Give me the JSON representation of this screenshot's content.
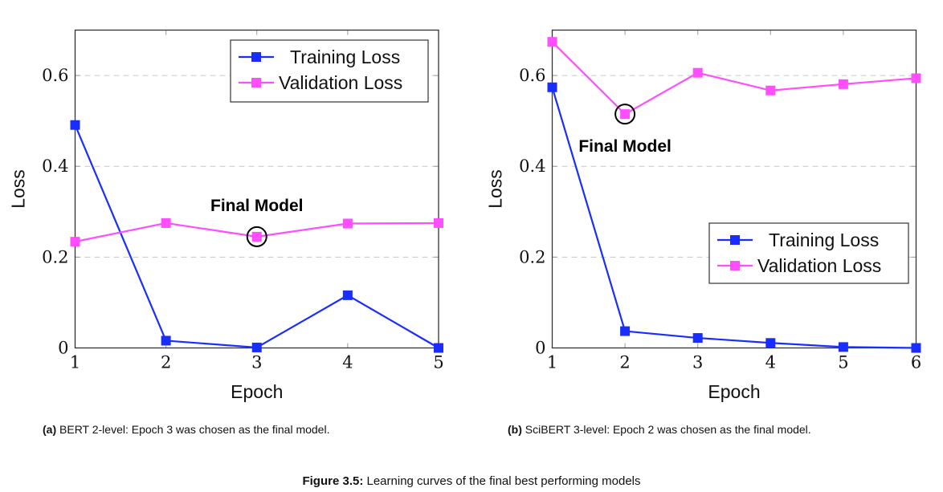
{
  "chart_data": [
    {
      "id": "a",
      "type": "line",
      "title": "",
      "xlabel": "Epoch",
      "ylabel": "Loss",
      "x": [
        1,
        2,
        3,
        4,
        5
      ],
      "xlim": [
        1,
        5
      ],
      "ylim": [
        0,
        0.7
      ],
      "xticks": [
        "1",
        "2",
        "3",
        "4",
        "5"
      ],
      "yticks": [
        0,
        0.2,
        0.4,
        0.6
      ],
      "ytick_labels": [
        "0",
        "0.2",
        "0.4",
        "0.6"
      ],
      "grid": "horizontal-dashed",
      "legend_position": "top-right",
      "series": [
        {
          "name": "Training Loss",
          "color": "#1a2dff",
          "marker": "square",
          "values": [
            0.491,
            0.016,
            0.001,
            0.116,
            0.0
          ]
        },
        {
          "name": "Validation Loss",
          "color": "#ff4dff",
          "marker": "square",
          "values": [
            0.234,
            0.275,
            0.245,
            0.274,
            0.275
          ]
        }
      ],
      "annotation": {
        "text": "Final Model",
        "epoch": 3,
        "series": "Validation Loss",
        "value": 0.245,
        "label_position": "above"
      },
      "caption_tag": "(a)",
      "caption_text": " BERT 2-level: Epoch 3 was chosen as the final model."
    },
    {
      "id": "b",
      "type": "line",
      "title": "",
      "xlabel": "Epoch",
      "ylabel": "Loss",
      "x": [
        1,
        2,
        3,
        4,
        5,
        6
      ],
      "xlim": [
        1,
        6
      ],
      "ylim": [
        0,
        0.7
      ],
      "xticks": [
        "1",
        "2",
        "3",
        "4",
        "5",
        "6"
      ],
      "yticks": [
        0,
        0.2,
        0.4,
        0.6
      ],
      "ytick_labels": [
        "0",
        "0.2",
        "0.4",
        "0.6"
      ],
      "grid": "horizontal-dashed",
      "legend_position": "center-right",
      "series": [
        {
          "name": "Training Loss",
          "color": "#1a2dff",
          "marker": "square",
          "values": [
            0.574,
            0.037,
            0.022,
            0.011,
            0.002,
            0.0
          ]
        },
        {
          "name": "Validation Loss",
          "color": "#ff4dff",
          "marker": "square",
          "values": [
            0.674,
            0.515,
            0.606,
            0.567,
            0.581,
            0.594
          ]
        }
      ],
      "annotation": {
        "text": "Final Model",
        "epoch": 2,
        "series": "Validation Loss",
        "value": 0.515,
        "label_position": "below"
      },
      "caption_tag": "(b)",
      "caption_text": " SciBERT 3-level: Epoch 2 was chosen as the final model."
    }
  ],
  "figure": {
    "label": "Figure 3.5:",
    "caption": " Learning curves of the final best performing models"
  }
}
